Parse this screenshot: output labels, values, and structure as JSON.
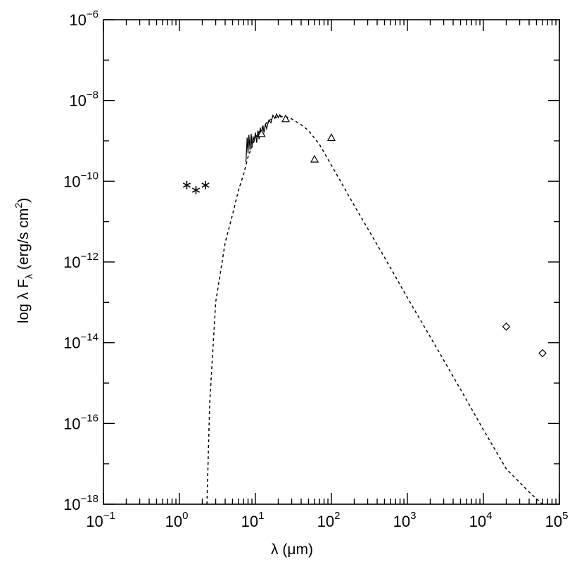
{
  "chart_data": {
    "type": "scatter",
    "xlabel": "λ (μm)",
    "ylabel": "log λ F",
    "ylabel_sub": "λ",
    "ylabel_units": "(erg/s cm",
    "ylabel_units_sup": "2",
    "ylabel_units_close": ")",
    "x_scale": "log",
    "y_scale": "log",
    "xlim": [
      0.1,
      100000
    ],
    "ylim": [
      1e-18,
      1e-06
    ],
    "x_tick_labels": [
      {
        "base": "10",
        "exp": "−1",
        "value": 0.1
      },
      {
        "base": "10",
        "exp": "0",
        "value": 1
      },
      {
        "base": "10",
        "exp": "1",
        "value": 10
      },
      {
        "base": "10",
        "exp": "2",
        "value": 100
      },
      {
        "base": "10",
        "exp": "3",
        "value": 1000
      },
      {
        "base": "10",
        "exp": "4",
        "value": 10000
      },
      {
        "base": "10",
        "exp": "5",
        "value": 100000
      }
    ],
    "y_tick_labels": [
      {
        "base": "10",
        "exp": "−6",
        "value": 1e-06
      },
      {
        "base": "10",
        "exp": "−8",
        "value": 1e-08
      },
      {
        "base": "10",
        "exp": "−10",
        "value": 1e-10
      },
      {
        "base": "10",
        "exp": "−12",
        "value": 1e-12
      },
      {
        "base": "10",
        "exp": "−14",
        "value": 1e-14
      },
      {
        "base": "10",
        "exp": "−16",
        "value": 1e-16
      },
      {
        "base": "10",
        "exp": "−18",
        "value": 1e-18
      }
    ],
    "series": [
      {
        "kind": "dashed-line",
        "points": [
          [
            2.3,
            1e-18
          ],
          [
            2.5,
            3e-16
          ],
          [
            3.0,
            1e-13
          ],
          [
            4.0,
            3e-12
          ],
          [
            5.0,
            1.5e-11
          ],
          [
            6.0,
            6e-11
          ],
          [
            7.0,
            1.5e-10
          ],
          [
            8.0,
            4e-10
          ],
          [
            10.0,
            1.2e-09
          ],
          [
            12.0,
            2e-09
          ],
          [
            15.0,
            3.2e-09
          ],
          [
            20.0,
            4e-09
          ],
          [
            25.0,
            4e-09
          ],
          [
            30.0,
            3.5e-09
          ],
          [
            40.0,
            2.5e-09
          ],
          [
            50.0,
            1.8e-09
          ],
          [
            70.0,
            8e-10
          ],
          [
            100.0,
            2.5e-10
          ],
          [
            200.0,
            2.5e-11
          ],
          [
            500.0,
            1.3e-12
          ],
          [
            1000.0,
            1.3e-13
          ],
          [
            2000.0,
            1.4e-14
          ],
          [
            5000.0,
            7e-16
          ],
          [
            10000.0,
            7e-17
          ],
          [
            20000.0,
            7.5e-18
          ],
          [
            40000.0,
            2e-18
          ],
          [
            60000.0,
            1e-18
          ]
        ]
      },
      {
        "kind": "spectrum",
        "points": [
          [
            7.5,
            3e-10
          ],
          [
            7.8,
            1.2e-09
          ],
          [
            8.0,
            5e-10
          ],
          [
            8.2,
            1.4e-09
          ],
          [
            8.5,
            6e-10
          ],
          [
            8.8,
            1.5e-09
          ],
          [
            9.0,
            7e-10
          ],
          [
            9.3,
            1.3e-09
          ],
          [
            9.6,
            1e-09
          ],
          [
            10.0,
            1.6e-09
          ],
          [
            10.4,
            9e-10
          ],
          [
            10.8,
            1.8e-09
          ],
          [
            11.2,
            1.1e-09
          ],
          [
            11.6,
            2.1e-09
          ],
          [
            12.0,
            1.3e-09
          ],
          [
            12.5,
            2.4e-09
          ],
          [
            13.0,
            1.6e-09
          ],
          [
            13.5,
            2.6e-09
          ],
          [
            14.0,
            2e-09
          ],
          [
            15.0,
            3.2e-09
          ],
          [
            16.0,
            2.8e-09
          ],
          [
            17.0,
            4.3e-09
          ],
          [
            18.0,
            3.6e-09
          ],
          [
            19.0,
            4.6e-09
          ],
          [
            20.0,
            3.8e-09
          ],
          [
            21.0,
            4.4e-09
          ],
          [
            22.0,
            3.8e-09
          ]
        ]
      },
      {
        "kind": "star",
        "points": [
          [
            1.25,
            8e-11
          ],
          [
            1.65,
            6e-11
          ],
          [
            2.2,
            8e-11
          ]
        ]
      },
      {
        "kind": "triangle",
        "points": [
          [
            12,
            1.5e-09
          ],
          [
            25,
            3.5e-09
          ],
          [
            60,
            3.5e-10
          ],
          [
            100,
            1.2e-09
          ]
        ]
      },
      {
        "kind": "diamond",
        "points": [
          [
            20000,
            2.5e-14
          ],
          [
            60000,
            5.5e-15
          ]
        ]
      }
    ]
  }
}
